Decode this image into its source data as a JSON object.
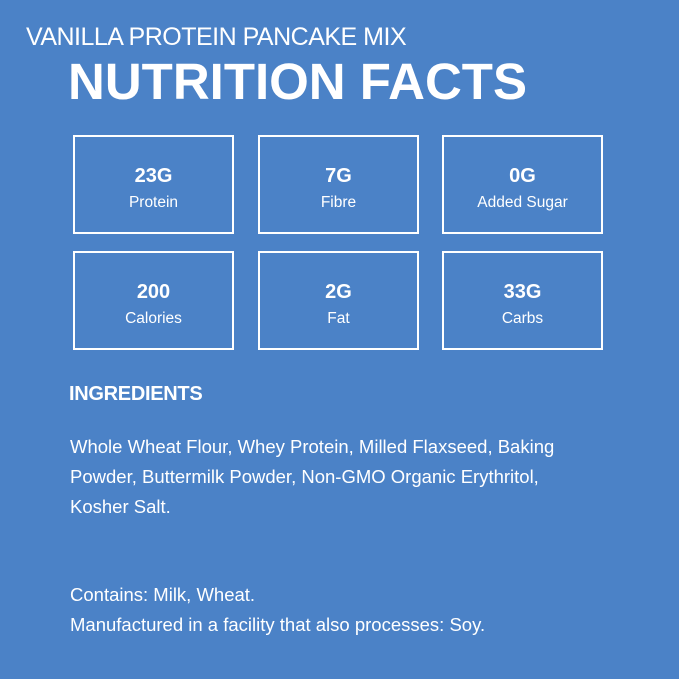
{
  "subtitle": "VANILLA PROTEIN PANCAKE MIX",
  "title": "NUTRITION FACTS",
  "facts": [
    {
      "value": "23G",
      "label": "Protein"
    },
    {
      "value": "7G",
      "label": "Fibre"
    },
    {
      "value": "0G",
      "label": "Added Sugar"
    },
    {
      "value": "200",
      "label": "Calories"
    },
    {
      "value": "2G",
      "label": "Fat"
    },
    {
      "value": "33G",
      "label": "Carbs"
    }
  ],
  "ingredients": {
    "heading": "INGREDIENTS",
    "text": "Whole Wheat Flour, Whey Protein, Milled Flaxseed, Baking Powder, Buttermilk Powder, Non-GMO Organic Erythritol, Kosher Salt."
  },
  "allergens": {
    "contains": "Contains: Milk, Wheat.",
    "facility": "Manufactured in a facility that also processes: Soy."
  },
  "colors": {
    "background": "#4b82c7",
    "text": "#ffffff"
  }
}
